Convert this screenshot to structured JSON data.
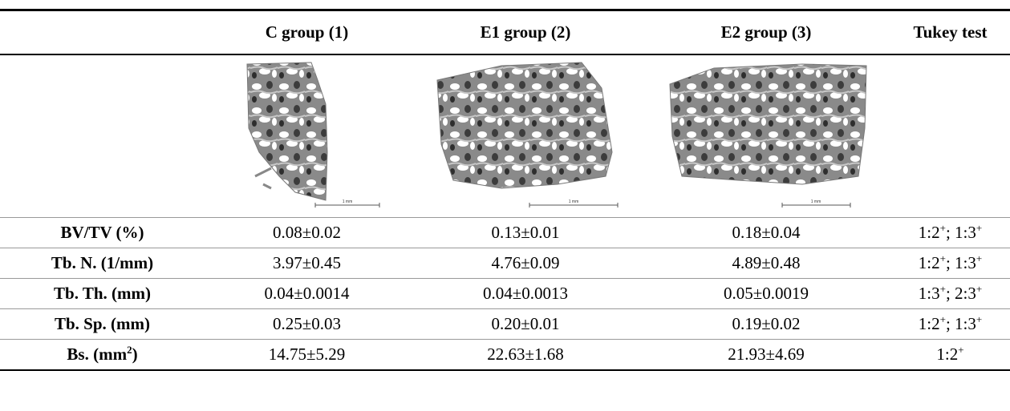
{
  "table": {
    "header": [
      "C group (1)",
      "E1 group (2)",
      "E2 group (3)",
      "Tukey test"
    ],
    "images": [
      {
        "scale_label": "1 mm"
      },
      {
        "scale_label": "1 mm"
      },
      {
        "scale_label": "1 mm"
      }
    ],
    "rows": [
      {
        "label": [
          {
            "text": "BV/TV (%)"
          }
        ],
        "values": [
          "0.08±0.02",
          "0.13±0.01",
          "0.18±0.04"
        ],
        "tukey": [
          {
            "text": "1:2"
          },
          {
            "sup": "+"
          },
          {
            "text": "; 1:3"
          },
          {
            "sup": "+"
          }
        ]
      },
      {
        "label": [
          {
            "text": "Tb. N. (1/mm)"
          }
        ],
        "values": [
          "3.97±0.45",
          "4.76±0.09",
          "4.89±0.48"
        ],
        "tukey": [
          {
            "text": "1:2"
          },
          {
            "sup": "+"
          },
          {
            "text": "; 1:3"
          },
          {
            "sup": "+"
          }
        ]
      },
      {
        "label": [
          {
            "text": "Tb. Th. (mm)"
          }
        ],
        "values": [
          "0.04±0.0014",
          "0.04±0.0013",
          "0.05±0.0019"
        ],
        "tukey": [
          {
            "text": "1:3"
          },
          {
            "sup": "+"
          },
          {
            "text": "; 2:3"
          },
          {
            "sup": "+"
          }
        ]
      },
      {
        "label": [
          {
            "text": "Tb. Sp. (mm)"
          }
        ],
        "values": [
          "0.25±0.03",
          "0.20±0.01",
          "0.19±0.02"
        ],
        "tukey": [
          {
            "text": "1:2"
          },
          {
            "sup": "+"
          },
          {
            "text": "; 1:3"
          },
          {
            "sup": "+"
          }
        ]
      },
      {
        "label": [
          {
            "text": "Bs. (mm"
          },
          {
            "sup": "2"
          },
          {
            "text": ")"
          }
        ],
        "values": [
          "14.75±5.29",
          "22.63±1.68",
          "21.93±4.69"
        ],
        "tukey": [
          {
            "text": "1:2"
          },
          {
            "sup": "+"
          }
        ]
      }
    ]
  }
}
